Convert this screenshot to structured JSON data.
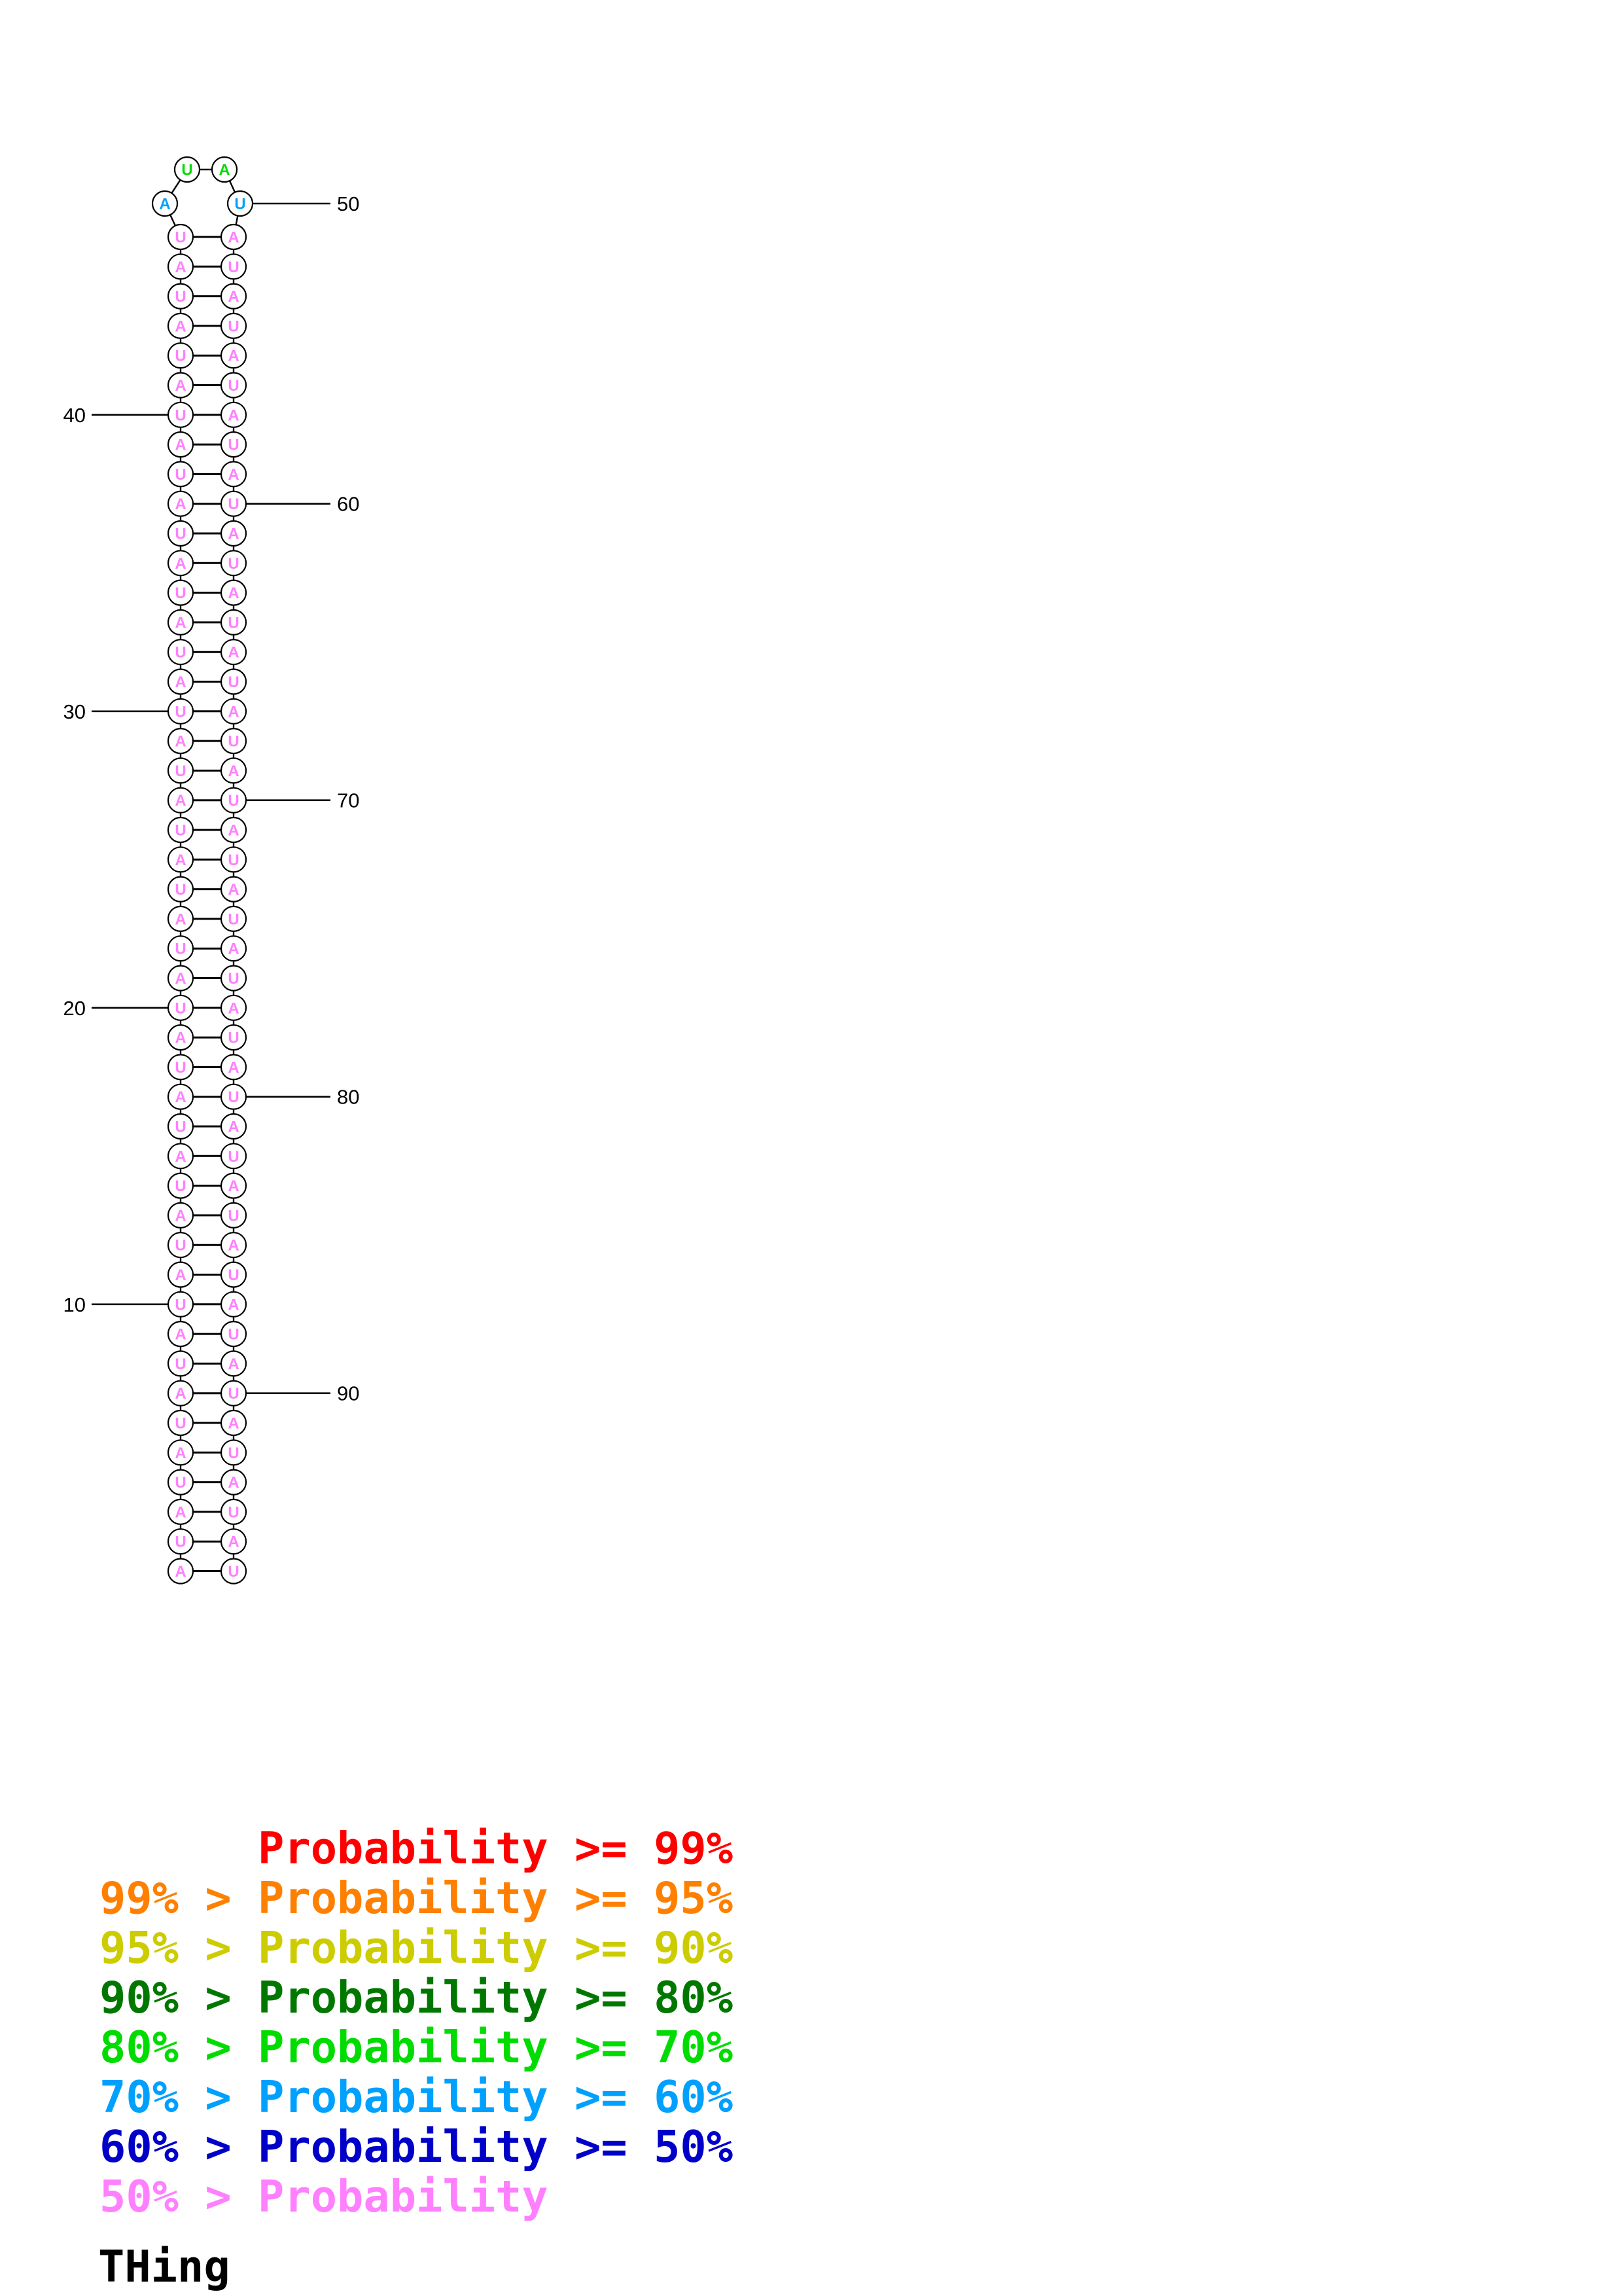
{
  "title": "THing",
  "structure": {
    "sequence": "AUAUAUAUAUAUAUAUAUAUAUAUAUAUAUAUAUAUAUAUAUAUAUAUAUAUAUAUAUAUAUAUAUAUAUAUAUAUAUAUAUAUAUAUAUAUAUAU",
    "length": 96,
    "stem_pair_count": 46,
    "loop_positions": [
      47,
      48,
      49,
      50
    ],
    "nucleotide_colors": {
      "stem": "p_below_50",
      "47": "p60_70",
      "48": "p70_80",
      "49": "p70_80",
      "50": "p60_70"
    },
    "ticks": [
      {
        "label": "10",
        "position": 10
      },
      {
        "label": "20",
        "position": 20
      },
      {
        "label": "30",
        "position": 30
      },
      {
        "label": "40",
        "position": 40
      },
      {
        "label": "50",
        "position": 50
      },
      {
        "label": "60",
        "position": 60
      },
      {
        "label": "70",
        "position": 70
      },
      {
        "label": "80",
        "position": 80
      },
      {
        "label": "90",
        "position": 90
      }
    ]
  },
  "probability_colors": {
    "p_ge_99": "#FF0000",
    "p95_99": "#FF8000",
    "p90_95": "#CCCC00",
    "p80_90": "#007800",
    "p70_80": "#00DC00",
    "p60_70": "#00A0FF",
    "p50_60": "#0000C8",
    "p_below_50": "#FF80FF"
  },
  "legend": {
    "lines": [
      {
        "text": "      Probability >= 99%",
        "color_key": "p_ge_99"
      },
      {
        "text": "99% > Probability >= 95%",
        "color_key": "p95_99"
      },
      {
        "text": "95% > Probability >= 90%",
        "color_key": "p90_95"
      },
      {
        "text": "90% > Probability >= 80%",
        "color_key": "p80_90"
      },
      {
        "text": "80% > Probability >= 70%",
        "color_key": "p70_80"
      },
      {
        "text": "70% > Probability >= 60%",
        "color_key": "p60_70"
      },
      {
        "text": "60% > Probability >= 50%",
        "color_key": "p50_60"
      },
      {
        "text": "50% > Probability",
        "color_key": "p_below_50"
      }
    ]
  }
}
